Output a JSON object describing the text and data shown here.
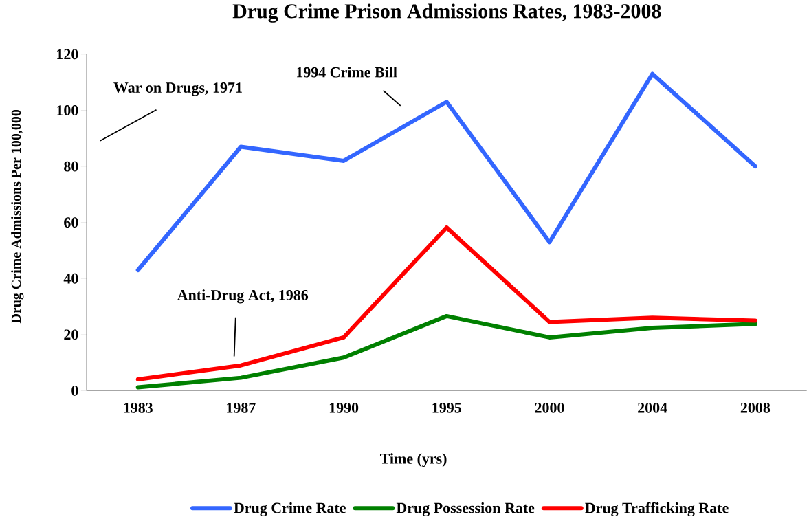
{
  "chart_data": {
    "type": "line",
    "title": "Drug Crime Prison Admissions Rates, 1983-2008",
    "xlabel": "Time (yrs)",
    "ylabel": "Drug Crime Admissions Per 100,000",
    "categories": [
      "1983",
      "1987",
      "1990",
      "1995",
      "2000",
      "2004",
      "2008"
    ],
    "series": [
      {
        "name": "Drug Crime Rate",
        "color": "#3366ff",
        "values": [
          43,
          87,
          82,
          103,
          53,
          113,
          80
        ]
      },
      {
        "name": "Drug Possession Rate",
        "color": "#008000",
        "values": [
          1.2,
          4.6,
          11.8,
          26.6,
          19,
          22.4,
          23.8
        ]
      },
      {
        "name": "Drug Trafficking Rate",
        "color": "#ff0000",
        "values": [
          4,
          9,
          19,
          58.2,
          24.5,
          26,
          25
        ]
      }
    ],
    "ylim": [
      0,
      120
    ],
    "yticks": [
      0,
      20,
      40,
      60,
      80,
      100,
      120
    ],
    "annotations": [
      "War on Drugs, 1971",
      "1994 Crime Bill",
      "Anti-Drug Act, 1986"
    ],
    "legend": "bottom",
    "grid": false,
    "marker": "none",
    "line_style": "solid"
  }
}
